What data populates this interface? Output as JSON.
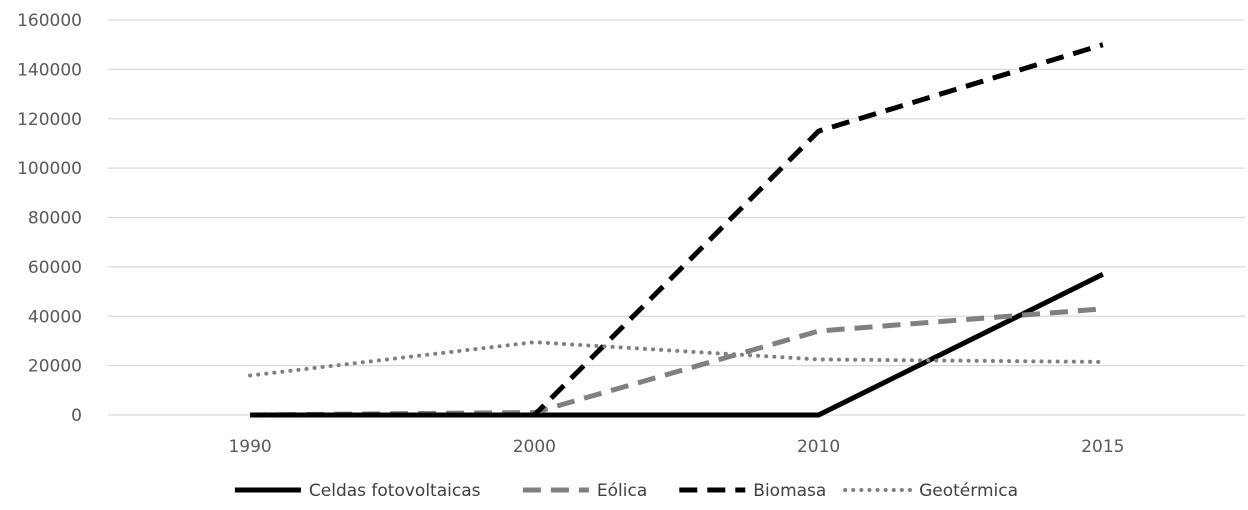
{
  "chart_data": {
    "type": "line",
    "categories": [
      "1990",
      "2000",
      "2010",
      "2015"
    ],
    "series": [
      {
        "name": "Celdas fotovoltaicas",
        "values": [
          0,
          0,
          0,
          57000
        ],
        "color": "#000000",
        "style": "solid"
      },
      {
        "name": "Eólica",
        "values": [
          0,
          1000,
          34000,
          43000
        ],
        "color": "#808080",
        "style": "dashed"
      },
      {
        "name": "Biomasa",
        "values": [
          0,
          0,
          115000,
          150000
        ],
        "color": "#000000",
        "style": "dashed"
      },
      {
        "name": "Geotérmica",
        "values": [
          16000,
          29500,
          22500,
          21500
        ],
        "color": "#808080",
        "style": "dotted"
      }
    ],
    "yticks": [
      "0",
      "20000",
      "40000",
      "60000",
      "80000",
      "100000",
      "120000",
      "140000",
      "160000"
    ],
    "ylim": [
      0,
      160000
    ],
    "grid": true,
    "legend_position": "bottom",
    "title": "",
    "xlabel": "",
    "ylabel": ""
  }
}
